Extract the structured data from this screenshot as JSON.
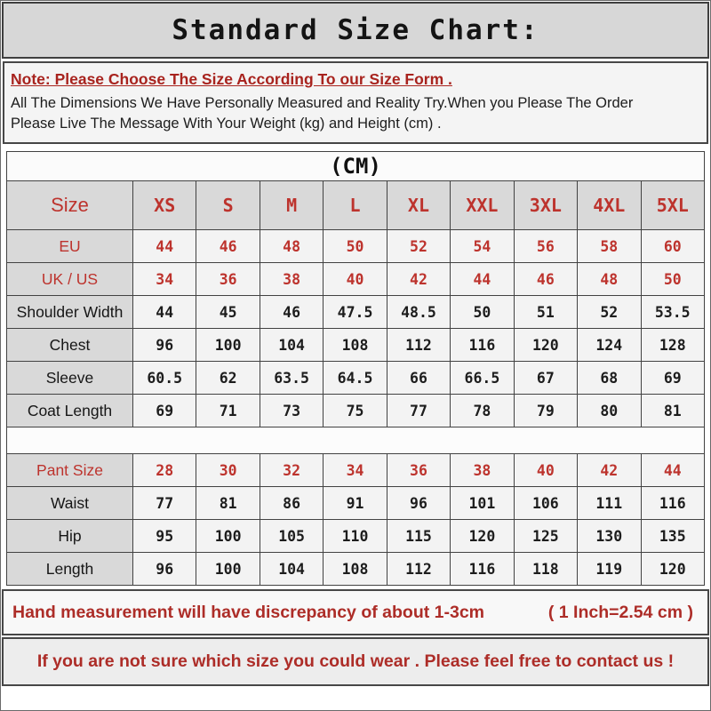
{
  "title": "Standard Size Chart:",
  "note": {
    "headline": "Note: Please Choose The Size According To our Size Form .",
    "line2": "All The Dimensions We Have Personally Measured and Reality Try.When you Please The Order",
    "line3": "Please Live The Message With Your Weight (kg) and Height (cm) ."
  },
  "unit_header": "(CM)",
  "size_table": {
    "header": [
      "Size",
      "XS",
      "S",
      "M",
      "L",
      "XL",
      "XXL",
      "3XL",
      "4XL",
      "5XL"
    ],
    "rows": [
      {
        "label": "EU",
        "red": true,
        "values": [
          "44",
          "46",
          "48",
          "50",
          "52",
          "54",
          "56",
          "58",
          "60"
        ]
      },
      {
        "label": "UK / US",
        "red": true,
        "values": [
          "34",
          "36",
          "38",
          "40",
          "42",
          "44",
          "46",
          "48",
          "50"
        ]
      },
      {
        "label": "Shoulder Width",
        "red": false,
        "values": [
          "44",
          "45",
          "46",
          "47.5",
          "48.5",
          "50",
          "51",
          "52",
          "53.5"
        ]
      },
      {
        "label": "Chest",
        "red": false,
        "values": [
          "96",
          "100",
          "104",
          "108",
          "112",
          "116",
          "120",
          "124",
          "128"
        ]
      },
      {
        "label": "Sleeve",
        "red": false,
        "values": [
          "60.5",
          "62",
          "63.5",
          "64.5",
          "66",
          "66.5",
          "67",
          "68",
          "69"
        ]
      },
      {
        "label": "Coat Length",
        "red": false,
        "values": [
          "69",
          "71",
          "73",
          "75",
          "77",
          "78",
          "79",
          "80",
          "81"
        ]
      }
    ]
  },
  "pant_table": {
    "rows": [
      {
        "label": "Pant Size",
        "red": true,
        "values": [
          "28",
          "30",
          "32",
          "34",
          "36",
          "38",
          "40",
          "42",
          "44"
        ]
      },
      {
        "label": "Waist",
        "red": false,
        "values": [
          "77",
          "81",
          "86",
          "91",
          "96",
          "101",
          "106",
          "111",
          "116"
        ]
      },
      {
        "label": "Hip",
        "red": false,
        "values": [
          "95",
          "100",
          "105",
          "110",
          "115",
          "120",
          "125",
          "130",
          "135"
        ]
      },
      {
        "label": "Length",
        "red": false,
        "values": [
          "96",
          "100",
          "104",
          "108",
          "112",
          "116",
          "118",
          "119",
          "120"
        ]
      }
    ]
  },
  "footer": {
    "discrepancy": "Hand measurement will have discrepancy of about 1-3cm",
    "inch_note": "( 1 Inch=2.54 cm )",
    "contact": "If you are not sure which size you could wear . Please feel free to contact us !"
  },
  "colors": {
    "accent_red": "#bd332d",
    "note_red": "#a8231e",
    "title_bg": "#d7d7d7",
    "label_cell_bg": "#d9d9d9",
    "value_cell_bg": "#f3f3f3",
    "border": "#424242"
  },
  "chart_data": {
    "type": "table",
    "title": "Standard Size Chart (CM)",
    "columns": [
      "Size",
      "XS",
      "S",
      "M",
      "L",
      "XL",
      "XXL",
      "3XL",
      "4XL",
      "5XL"
    ],
    "rows": [
      [
        "EU",
        44,
        46,
        48,
        50,
        52,
        54,
        56,
        58,
        60
      ],
      [
        "UK / US",
        34,
        36,
        38,
        40,
        42,
        44,
        46,
        48,
        50
      ],
      [
        "Shoulder Width",
        44,
        45,
        46,
        47.5,
        48.5,
        50,
        51,
        52,
        53.5
      ],
      [
        "Chest",
        96,
        100,
        104,
        108,
        112,
        116,
        120,
        124,
        128
      ],
      [
        "Sleeve",
        60.5,
        62,
        63.5,
        64.5,
        66,
        66.5,
        67,
        68,
        69
      ],
      [
        "Coat Length",
        69,
        71,
        73,
        75,
        77,
        78,
        79,
        80,
        81
      ],
      [
        "Pant Size",
        28,
        30,
        32,
        34,
        36,
        38,
        40,
        42,
        44
      ],
      [
        "Waist",
        77,
        81,
        86,
        91,
        96,
        101,
        106,
        111,
        116
      ],
      [
        "Hip",
        95,
        100,
        105,
        110,
        115,
        120,
        125,
        130,
        135
      ],
      [
        "Length",
        96,
        100,
        104,
        108,
        112,
        116,
        118,
        119,
        120
      ]
    ],
    "notes": [
      "Note: Please Choose The Size According To our Size Form .",
      "Hand measurement will have discrepancy of about 1-3cm",
      "1 Inch=2.54 cm"
    ]
  }
}
